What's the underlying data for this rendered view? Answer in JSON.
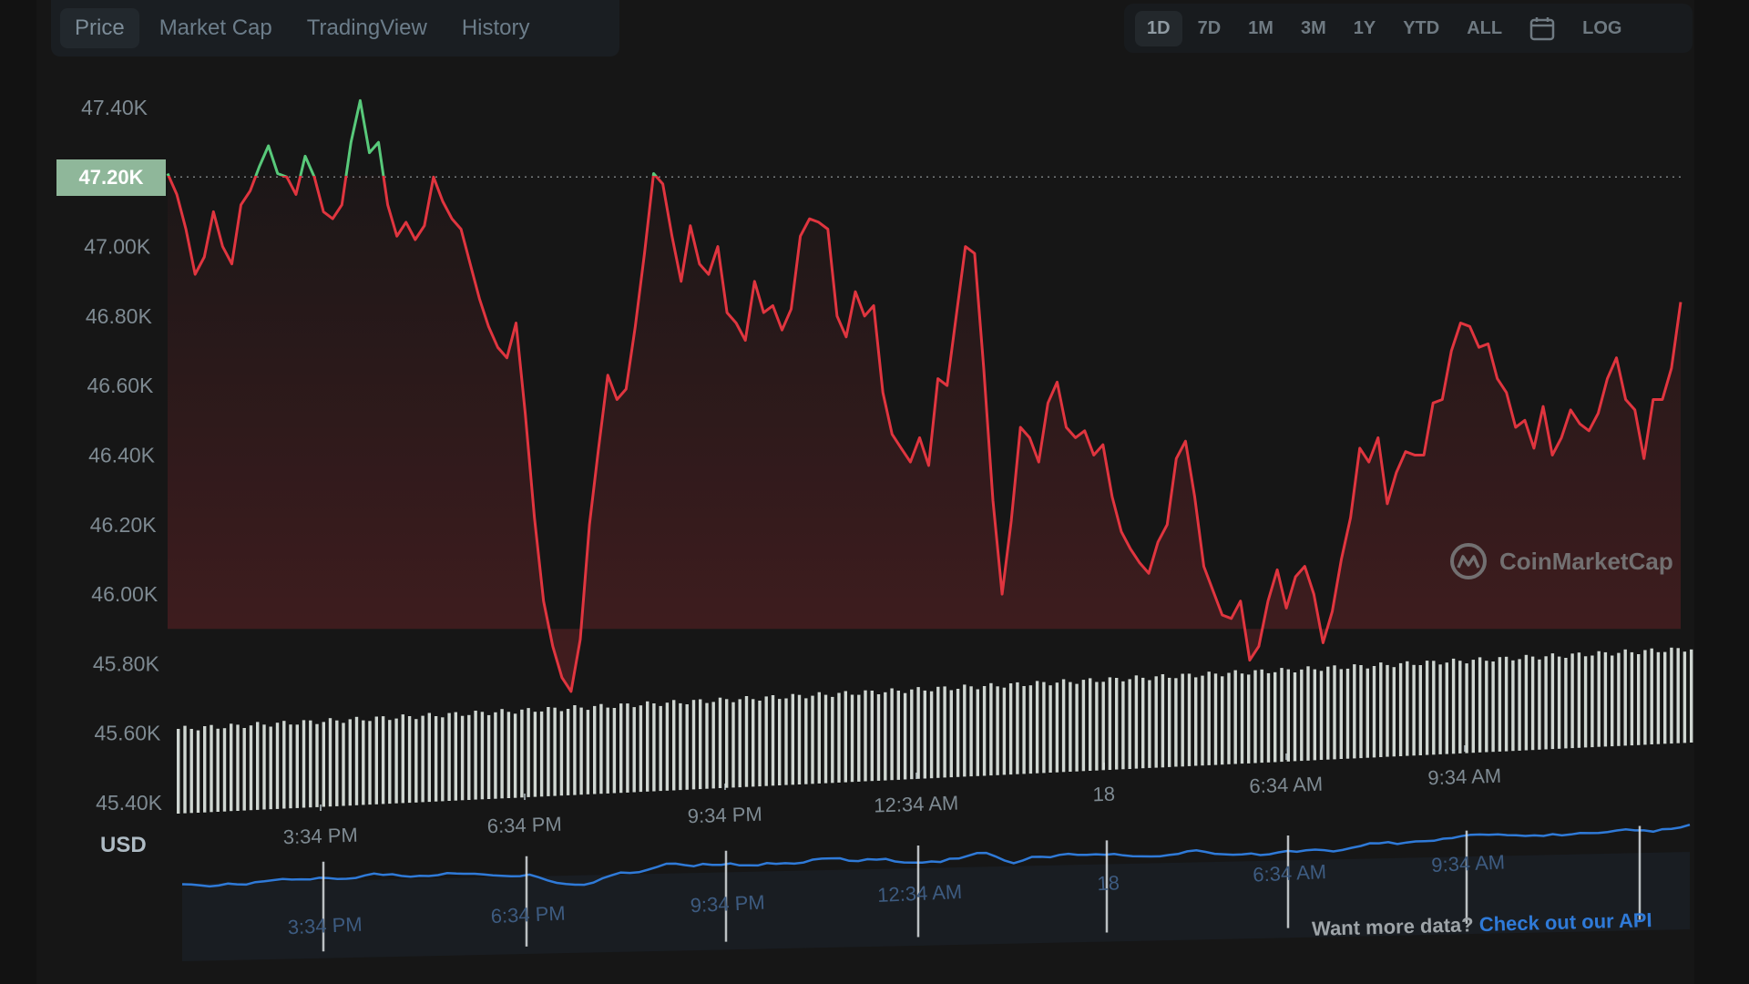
{
  "tabs": [
    {
      "label": "Price",
      "active": true
    },
    {
      "label": "Market Cap",
      "active": false
    },
    {
      "label": "TradingView",
      "active": false
    },
    {
      "label": "History",
      "active": false
    }
  ],
  "ranges": [
    {
      "label": "1D",
      "active": true
    },
    {
      "label": "7D",
      "active": false
    },
    {
      "label": "1M",
      "active": false
    },
    {
      "label": "3M",
      "active": false
    },
    {
      "label": "1Y",
      "active": false
    },
    {
      "label": "YTD",
      "active": false
    },
    {
      "label": "ALL",
      "active": false
    },
    {
      "label": "LOG",
      "active": false
    }
  ],
  "current_price_label": "47.20K",
  "currency_label": "USD",
  "watermark": "CoinMarketCap",
  "footer": {
    "text": "Want more data?",
    "link": "Check out our API"
  },
  "colors": {
    "up": "#58c97a",
    "down": "#e0353f",
    "volume": "#dfe7e2",
    "navigator": "#2f7ad8",
    "badge": "#8fb79a",
    "background": "#161616"
  },
  "chart_data": {
    "type": "line",
    "title": "",
    "ylabel": "USD",
    "y_ticks": [
      "47.40K",
      "47.20K",
      "47.00K",
      "46.80K",
      "46.60K",
      "46.40K",
      "46.20K",
      "46.00K",
      "45.80K",
      "45.60K",
      "45.40K"
    ],
    "ylim": [
      45400,
      47450
    ],
    "reference_value": 47200,
    "x_ticks": [
      "3:34 PM",
      "6:34 PM",
      "9:34 PM",
      "12:34 AM",
      "18",
      "6:34 AM",
      "9:34 AM"
    ],
    "navigator_ticks": [
      "3:34 PM",
      "6:34 PM",
      "9:34 PM",
      "12:34 AM",
      "18",
      "6:34 AM",
      "9:34 AM"
    ],
    "grid": false,
    "series": [
      {
        "values": [
          47210,
          47150,
          47050,
          46920,
          46970,
          47100,
          47000,
          46950,
          47120,
          47160,
          47230,
          47290,
          47210,
          47200,
          47150,
          47260,
          47200,
          47100,
          47080,
          47120,
          47300,
          47420,
          47270,
          47300,
          47120,
          47030,
          47070,
          47020,
          47060,
          47200,
          47130,
          47080,
          47050,
          46950,
          46850,
          46770,
          46710,
          46680,
          46780,
          46520,
          46220,
          45980,
          45850,
          45760,
          45720,
          45870,
          46200,
          46420,
          46630,
          46560,
          46590,
          46770,
          46980,
          47210,
          47180,
          47030,
          46900,
          47060,
          46950,
          46920,
          47000,
          46810,
          46780,
          46730,
          46900,
          46810,
          46830,
          46760,
          46820,
          47030,
          47080,
          47070,
          47050,
          46800,
          46740,
          46870,
          46800,
          46830,
          46580,
          46460,
          46420,
          46380,
          46450,
          46370,
          46620,
          46600,
          46800,
          47000,
          46980,
          46650,
          46270,
          46000,
          46210,
          46480,
          46450,
          46380,
          46550,
          46610,
          46480,
          46450,
          46470,
          46400,
          46430,
          46280,
          46180,
          46130,
          46090,
          46060,
          46150,
          46200,
          46390,
          46440,
          46280,
          46080,
          46010,
          45940,
          45930,
          45980,
          45810,
          45850,
          45980,
          46070,
          45960,
          46050,
          46080,
          46000,
          45860,
          45950,
          46100,
          46220,
          46420,
          46380,
          46450,
          46260,
          46350,
          46410,
          46400,
          46400,
          46550,
          46560,
          46700,
          46780,
          46770,
          46710,
          46720,
          46620,
          46580,
          46480,
          46500,
          46420,
          46540,
          46400,
          46450,
          46530,
          46490,
          46470,
          46520,
          46620,
          46680,
          46560,
          46530,
          46390,
          46560,
          46560,
          46650,
          46840
        ]
      }
    ],
    "volume_note": "volume bars shown without axis values"
  }
}
